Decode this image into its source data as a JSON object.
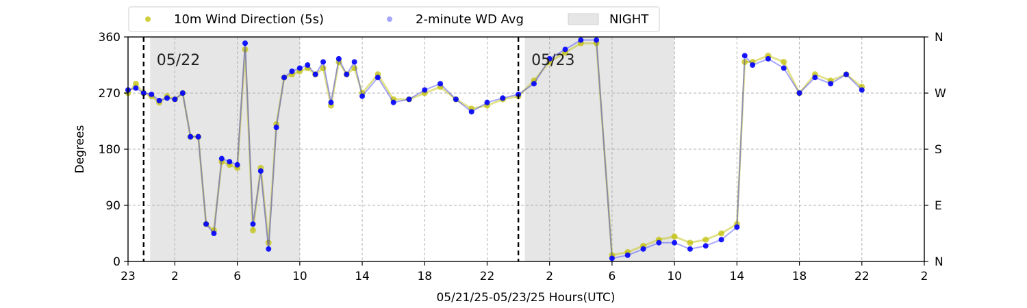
{
  "chart_data": {
    "type": "scatter",
    "title": "",
    "xlabel": "05/21/25-05/23/25  Hours(UTC)",
    "ylabel": "Degrees",
    "xlim": [
      "2025-05-21T23:00",
      "2025-05-24T02:00"
    ],
    "ylim": [
      0,
      360
    ],
    "x_tick_labels": [
      "23",
      "2",
      "6",
      "10",
      "14",
      "18",
      "22",
      "2",
      "6",
      "10",
      "14",
      "18",
      "22",
      "2"
    ],
    "x_ticks": [
      "2025-05-21T23:00",
      "2025-05-22T02:00",
      "2025-05-22T06:00",
      "2025-05-22T10:00",
      "2025-05-22T14:00",
      "2025-05-22T18:00",
      "2025-05-22T22:00",
      "2025-05-23T02:00",
      "2025-05-23T06:00",
      "2025-05-23T10:00",
      "2025-05-23T14:00",
      "2025-05-23T18:00",
      "2025-05-23T22:00",
      "2025-05-24T02:00"
    ],
    "y_ticks": [
      0,
      90,
      180,
      270,
      360
    ],
    "y_tick_labels": [
      "0",
      "90",
      "180",
      "270",
      "360"
    ],
    "right_y_tick_labels": [
      "N",
      "E",
      "S",
      "W",
      "N"
    ],
    "grid": true,
    "legend_position": "top, above plot",
    "legend": [
      {
        "label": "10m Wind Direction (5s)",
        "kind": "marker",
        "color": "#bfbf00"
      },
      {
        "label": "2-minute WD Avg",
        "kind": "marker",
        "color": "#0000ff"
      },
      {
        "label": "NIGHT",
        "kind": "patch",
        "color": "#e6e6e6"
      }
    ],
    "night_periods": [
      [
        "2025-05-22T00:25",
        "2025-05-22T10:00"
      ],
      [
        "2025-05-23T00:25",
        "2025-05-23T10:00"
      ]
    ],
    "midnight_markers": [
      {
        "x": "2025-05-22T00:00",
        "label": "05/22"
      },
      {
        "x": "2025-05-23T00:00",
        "label": "05/23"
      }
    ],
    "series": [
      {
        "name": "10m Wind Direction (5s)",
        "color": "#bfbf00",
        "points": [
          [
            "2025-05-21T23:00",
            270
          ],
          [
            "2025-05-21T23:30",
            285
          ],
          [
            "2025-05-22T00:00",
            270
          ],
          [
            "2025-05-22T00:30",
            265
          ],
          [
            "2025-05-22T01:00",
            255
          ],
          [
            "2025-05-22T01:30",
            265
          ],
          [
            "2025-05-22T02:00",
            260
          ],
          [
            "2025-05-22T02:30",
            270
          ],
          [
            "2025-05-22T03:00",
            200
          ],
          [
            "2025-05-22T03:30",
            200
          ],
          [
            "2025-05-22T04:00",
            60
          ],
          [
            "2025-05-22T04:30",
            50
          ],
          [
            "2025-05-22T05:00",
            160
          ],
          [
            "2025-05-22T05:30",
            155
          ],
          [
            "2025-05-22T06:00",
            150
          ],
          [
            "2025-05-22T06:30",
            340
          ],
          [
            "2025-05-22T07:00",
            50
          ],
          [
            "2025-05-22T07:30",
            150
          ],
          [
            "2025-05-22T08:00",
            30
          ],
          [
            "2025-05-22T08:30",
            220
          ],
          [
            "2025-05-22T09:00",
            295
          ],
          [
            "2025-05-22T09:30",
            300
          ],
          [
            "2025-05-22T10:00",
            305
          ],
          [
            "2025-05-22T10:30",
            310
          ],
          [
            "2025-05-22T11:00",
            300
          ],
          [
            "2025-05-22T11:30",
            310
          ],
          [
            "2025-05-22T12:00",
            250
          ],
          [
            "2025-05-22T12:30",
            320
          ],
          [
            "2025-05-22T13:00",
            300
          ],
          [
            "2025-05-22T13:30",
            310
          ],
          [
            "2025-05-22T14:00",
            270
          ],
          [
            "2025-05-22T15:00",
            300
          ],
          [
            "2025-05-22T16:00",
            260
          ],
          [
            "2025-05-22T17:00",
            260
          ],
          [
            "2025-05-22T18:00",
            270
          ],
          [
            "2025-05-22T19:00",
            280
          ],
          [
            "2025-05-22T20:00",
            260
          ],
          [
            "2025-05-22T21:00",
            245
          ],
          [
            "2025-05-22T22:00",
            250
          ],
          [
            "2025-05-22T23:00",
            260
          ],
          [
            "2025-05-23T00:00",
            265
          ],
          [
            "2025-05-23T01:00",
            290
          ],
          [
            "2025-05-23T02:00",
            320
          ],
          [
            "2025-05-23T03:00",
            335
          ],
          [
            "2025-05-23T04:00",
            350
          ],
          [
            "2025-05-23T05:00",
            350
          ],
          [
            "2025-05-23T06:00",
            10
          ],
          [
            "2025-05-23T07:00",
            15
          ],
          [
            "2025-05-23T08:00",
            25
          ],
          [
            "2025-05-23T09:00",
            35
          ],
          [
            "2025-05-23T10:00",
            40
          ],
          [
            "2025-05-23T11:00",
            30
          ],
          [
            "2025-05-23T12:00",
            35
          ],
          [
            "2025-05-23T13:00",
            45
          ],
          [
            "2025-05-23T14:00",
            60
          ],
          [
            "2025-05-23T14:30",
            320
          ],
          [
            "2025-05-23T15:00",
            320
          ],
          [
            "2025-05-23T16:00",
            330
          ],
          [
            "2025-05-23T17:00",
            320
          ],
          [
            "2025-05-23T18:00",
            270
          ],
          [
            "2025-05-23T19:00",
            300
          ],
          [
            "2025-05-23T20:00",
            290
          ],
          [
            "2025-05-23T21:00",
            300
          ],
          [
            "2025-05-23T22:00",
            280
          ]
        ]
      },
      {
        "name": "2-minute WD Avg",
        "color": "#0000ff",
        "points": [
          [
            "2025-05-21T23:00",
            275
          ],
          [
            "2025-05-21T23:30",
            278
          ],
          [
            "2025-05-22T00:00",
            270
          ],
          [
            "2025-05-22T00:30",
            268
          ],
          [
            "2025-05-22T01:00",
            258
          ],
          [
            "2025-05-22T01:30",
            262
          ],
          [
            "2025-05-22T02:00",
            260
          ],
          [
            "2025-05-22T02:30",
            270
          ],
          [
            "2025-05-22T03:00",
            200
          ],
          [
            "2025-05-22T03:30",
            200
          ],
          [
            "2025-05-22T04:00",
            60
          ],
          [
            "2025-05-22T04:30",
            45
          ],
          [
            "2025-05-22T05:00",
            165
          ],
          [
            "2025-05-22T05:30",
            160
          ],
          [
            "2025-05-22T06:00",
            155
          ],
          [
            "2025-05-22T06:30",
            350
          ],
          [
            "2025-05-22T07:00",
            60
          ],
          [
            "2025-05-22T07:30",
            145
          ],
          [
            "2025-05-22T08:00",
            20
          ],
          [
            "2025-05-22T08:30",
            215
          ],
          [
            "2025-05-22T09:00",
            295
          ],
          [
            "2025-05-22T09:30",
            305
          ],
          [
            "2025-05-22T10:00",
            310
          ],
          [
            "2025-05-22T10:30",
            315
          ],
          [
            "2025-05-22T11:00",
            300
          ],
          [
            "2025-05-22T11:30",
            320
          ],
          [
            "2025-05-22T12:00",
            255
          ],
          [
            "2025-05-22T12:30",
            325
          ],
          [
            "2025-05-22T13:00",
            300
          ],
          [
            "2025-05-22T13:30",
            320
          ],
          [
            "2025-05-22T14:00",
            265
          ],
          [
            "2025-05-22T15:00",
            295
          ],
          [
            "2025-05-22T16:00",
            255
          ],
          [
            "2025-05-22T17:00",
            260
          ],
          [
            "2025-05-22T18:00",
            275
          ],
          [
            "2025-05-22T19:00",
            285
          ],
          [
            "2025-05-22T20:00",
            260
          ],
          [
            "2025-05-22T21:00",
            240
          ],
          [
            "2025-05-22T22:00",
            255
          ],
          [
            "2025-05-22T23:00",
            262
          ],
          [
            "2025-05-23T00:00",
            268
          ],
          [
            "2025-05-23T01:00",
            285
          ],
          [
            "2025-05-23T02:00",
            325
          ],
          [
            "2025-05-23T03:00",
            340
          ],
          [
            "2025-05-23T04:00",
            355
          ],
          [
            "2025-05-23T05:00",
            355
          ],
          [
            "2025-05-23T06:00",
            5
          ],
          [
            "2025-05-23T07:00",
            10
          ],
          [
            "2025-05-23T08:00",
            20
          ],
          [
            "2025-05-23T09:00",
            30
          ],
          [
            "2025-05-23T10:00",
            30
          ],
          [
            "2025-05-23T11:00",
            20
          ],
          [
            "2025-05-23T12:00",
            25
          ],
          [
            "2025-05-23T13:00",
            35
          ],
          [
            "2025-05-23T14:00",
            55
          ],
          [
            "2025-05-23T14:30",
            330
          ],
          [
            "2025-05-23T15:00",
            315
          ],
          [
            "2025-05-23T16:00",
            325
          ],
          [
            "2025-05-23T17:00",
            310
          ],
          [
            "2025-05-23T18:00",
            270
          ],
          [
            "2025-05-23T19:00",
            295
          ],
          [
            "2025-05-23T20:00",
            285
          ],
          [
            "2025-05-23T21:00",
            300
          ],
          [
            "2025-05-23T22:00",
            275
          ]
        ]
      }
    ]
  }
}
